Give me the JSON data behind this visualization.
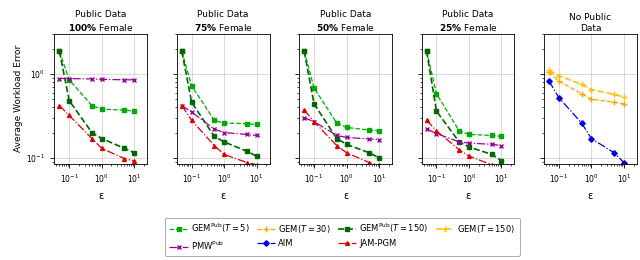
{
  "titles_bold": [
    [
      "Public Data",
      "100% Female"
    ],
    [
      "Public Data",
      "75% Female"
    ],
    [
      "Public Data",
      "50% Female"
    ],
    [
      "Public Data",
      "25% Female"
    ],
    [
      "No Public",
      "Data"
    ]
  ],
  "bold_idx": [
    0,
    0,
    0,
    0,
    -1
  ],
  "xlabel": "ε",
  "ylabel": "Average Workload Error",
  "epsilon": [
    0.05,
    0.1,
    0.5,
    1.0,
    5.0,
    10.0
  ],
  "panels": {
    "p0": {
      "gem_pub_t5": [
        1.85,
        0.85,
        0.42,
        0.38,
        0.37,
        0.36
      ],
      "gem_pub_t150": [
        1.85,
        0.48,
        0.2,
        0.17,
        0.13,
        0.115
      ],
      "pmw_pub": [
        0.88,
        0.88,
        0.87,
        0.86,
        0.85,
        0.85
      ],
      "jam_pgm": [
        0.42,
        0.32,
        0.17,
        0.13,
        0.098,
        0.092
      ]
    },
    "p1": {
      "gem_pub_t5": [
        1.85,
        0.72,
        0.28,
        0.26,
        0.255,
        0.25
      ],
      "gem_pub_t150": [
        1.85,
        0.46,
        0.18,
        0.155,
        0.12,
        0.105
      ],
      "pmw_pub": [
        0.42,
        0.35,
        0.22,
        0.2,
        0.19,
        0.185
      ],
      "jam_pgm": [
        0.42,
        0.28,
        0.14,
        0.11,
        0.088,
        0.083
      ]
    },
    "p2": {
      "gem_pub_t5": [
        1.85,
        0.68,
        0.26,
        0.23,
        0.215,
        0.21
      ],
      "gem_pub_t150": [
        1.85,
        0.44,
        0.17,
        0.145,
        0.115,
        0.1
      ],
      "pmw_pub": [
        0.3,
        0.27,
        0.185,
        0.175,
        0.168,
        0.165
      ],
      "jam_pgm": [
        0.37,
        0.27,
        0.14,
        0.115,
        0.088,
        0.082
      ]
    },
    "p3": {
      "gem_pub_t5": [
        1.85,
        0.58,
        0.21,
        0.19,
        0.185,
        0.18
      ],
      "gem_pub_t150": [
        1.85,
        0.36,
        0.155,
        0.135,
        0.11,
        0.093
      ],
      "pmw_pub": [
        0.22,
        0.195,
        0.155,
        0.15,
        0.145,
        0.14
      ],
      "jam_pgm": [
        0.28,
        0.21,
        0.125,
        0.105,
        0.083,
        0.077
      ]
    },
    "p4": {
      "gem_t30": [
        1.05,
        0.82,
        0.58,
        0.5,
        0.46,
        0.44
      ],
      "gem_t150": [
        1.1,
        0.95,
        0.75,
        0.65,
        0.57,
        0.53
      ],
      "aim": [
        0.82,
        0.52,
        0.26,
        0.17,
        0.115,
        0.088
      ]
    }
  },
  "colors": {
    "gem_pub_t5": "#00AA00",
    "gem_pub_t150": "#006600",
    "pmw_pub": "#990099",
    "jam_pgm": "#DD0000",
    "gem_t30": "#FFA500",
    "gem_t150": "#FFC000",
    "aim": "#0000DD"
  },
  "xlim": [
    0.035,
    25
  ],
  "ylim": [
    0.085,
    3.0
  ],
  "yticks": [
    0.1,
    1.0
  ],
  "xticks": [
    0.1,
    1.0,
    10.0
  ]
}
